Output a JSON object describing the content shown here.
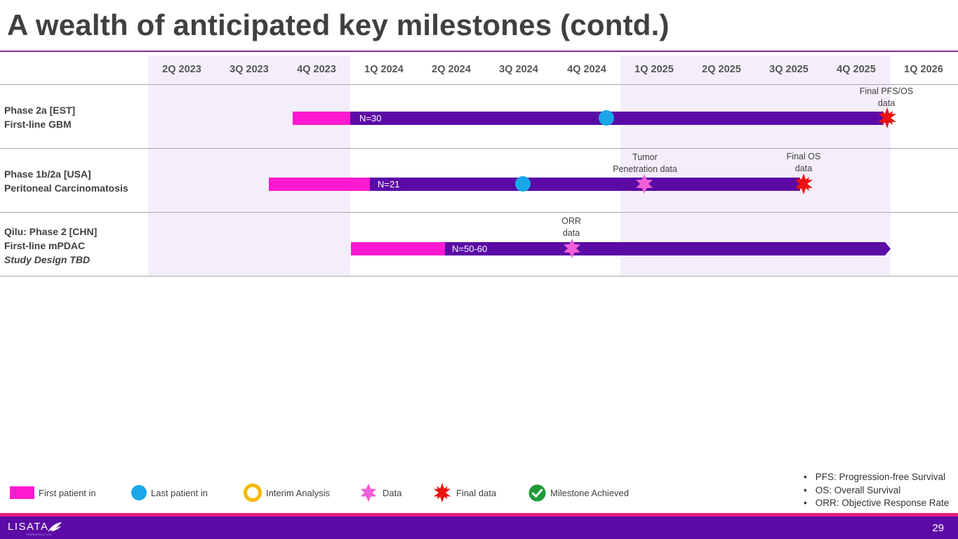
{
  "slide": {
    "title": "A wealth of anticipated key milestones (contd.)",
    "page_number": "29"
  },
  "quarters": [
    "2Q 2023",
    "3Q 2023",
    "4Q 2023",
    "1Q 2024",
    "2Q 2024",
    "3Q 2024",
    "4Q 2024",
    "1Q 2025",
    "2Q 2025",
    "3Q 2025",
    "4Q 2025",
    "1Q 2026"
  ],
  "rows": [
    {
      "lines": [
        "Phase 2a [EST]",
        "First-line GBM"
      ],
      "bar_label": "N=30",
      "annotations": [
        {
          "lines": [
            "Final PFS/OS",
            "data"
          ]
        }
      ]
    },
    {
      "lines": [
        "Phase 1b/2a [USA]",
        "Peritoneal Carcinomatosis"
      ],
      "bar_label": "N=21",
      "annotations": [
        {
          "lines": [
            "Tumor",
            "Penetration data"
          ]
        },
        {
          "lines": [
            "Final OS",
            "data"
          ]
        }
      ]
    },
    {
      "lines": [
        "Qilu: Phase 2 [CHN]",
        "First-line mPDAC"
      ],
      "italic_line": "Study Design TBD",
      "bar_label": "N=50-60",
      "annotations": [
        {
          "lines": [
            "ORR",
            "data"
          ]
        }
      ]
    }
  ],
  "legend": {
    "first_patient": "First patient in",
    "last_patient": "Last patient in",
    "interim": "Interim Analysis",
    "data": "Data",
    "final": "Final data",
    "achieved": "Milestone Achieved"
  },
  "notes": [
    "PFS: Progression-free Survival",
    "OS: Overall Survival",
    "ORR: Objective Response Rate"
  ],
  "footer": {
    "logo_text": "LISATA",
    "logo_subtext": "THERAPEUTICS"
  },
  "colors": {
    "first_patient": "#ff1ad1",
    "enrollment_bar": "#5b0aa6",
    "last_patient": "#1aa6e8",
    "data": "#f25fd6",
    "final_data": "#ee1111",
    "interim": "#f5b800",
    "achieved": "#1f9a38"
  }
}
